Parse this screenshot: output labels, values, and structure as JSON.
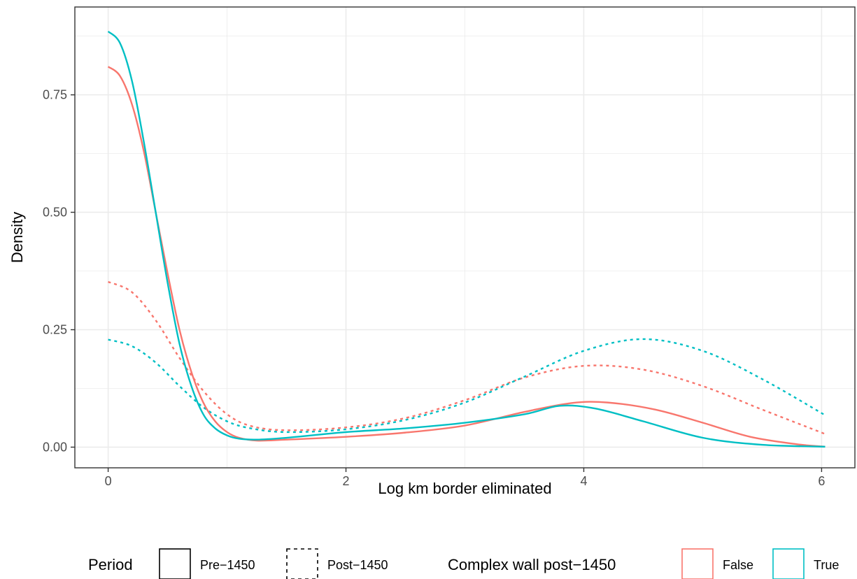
{
  "chart_data": {
    "type": "line",
    "xlabel": "Log km border eliminated",
    "ylabel": "Density",
    "xlim": [
      -0.28,
      6.28
    ],
    "ylim": [
      -0.044,
      0.937
    ],
    "x_ticks": [
      0,
      2,
      4,
      6
    ],
    "x_tick_labels": [
      "0",
      "2",
      "4",
      "6"
    ],
    "y_ticks": [
      0.0,
      0.25,
      0.5,
      0.75
    ],
    "y_tick_labels": [
      "0.00",
      "0.25",
      "0.50",
      "0.75"
    ],
    "grid": true,
    "legend_position": "bottom",
    "legend": {
      "linetype_title": "Period",
      "linetype_entries": [
        {
          "label": "Pre−1450",
          "linetype": "solid"
        },
        {
          "label": "Post−1450",
          "linetype": "dashed"
        }
      ],
      "color_title": "Complex wall post−1450",
      "color_entries": [
        {
          "label": "False",
          "color": "#F8766D"
        },
        {
          "label": "True",
          "color": "#00BFC4"
        }
      ]
    },
    "series": [
      {
        "color_group": "False",
        "period": "Pre−1450",
        "color": "#F8766D",
        "linetype": "solid",
        "x": [
          0,
          0.1,
          0.2,
          0.3,
          0.4,
          0.5,
          0.6,
          0.7,
          0.8,
          0.9,
          1.0,
          1.1,
          1.25,
          1.5,
          2.0,
          2.5,
          3.0,
          3.5,
          3.9,
          4.2,
          4.6,
          5.0,
          5.4,
          5.8,
          6.03
        ],
        "y": [
          0.81,
          0.79,
          0.73,
          0.63,
          0.5,
          0.37,
          0.25,
          0.16,
          0.095,
          0.055,
          0.032,
          0.02,
          0.014,
          0.016,
          0.022,
          0.031,
          0.046,
          0.075,
          0.094,
          0.095,
          0.08,
          0.052,
          0.022,
          0.006,
          0.001
        ]
      },
      {
        "color_group": "True",
        "period": "Pre−1450",
        "color": "#00BFC4",
        "linetype": "solid",
        "x": [
          0,
          0.1,
          0.2,
          0.3,
          0.4,
          0.5,
          0.6,
          0.7,
          0.8,
          0.9,
          1.0,
          1.1,
          1.25,
          1.5,
          2.0,
          2.5,
          3.0,
          3.5,
          3.8,
          4.1,
          4.5,
          5.0,
          5.5,
          6.03
        ],
        "y": [
          0.885,
          0.86,
          0.78,
          0.65,
          0.5,
          0.35,
          0.22,
          0.13,
          0.07,
          0.04,
          0.025,
          0.018,
          0.016,
          0.02,
          0.032,
          0.04,
          0.052,
          0.07,
          0.088,
          0.082,
          0.055,
          0.02,
          0.005,
          0.001
        ]
      },
      {
        "color_group": "False",
        "period": "Post−1450",
        "color": "#F8766D",
        "linetype": "dashed",
        "x": [
          0,
          0.2,
          0.4,
          0.6,
          0.8,
          1.0,
          1.2,
          1.5,
          2.0,
          2.5,
          3.0,
          3.5,
          4.0,
          4.5,
          5.0,
          5.5,
          6.03
        ],
        "y": [
          0.352,
          0.33,
          0.27,
          0.19,
          0.12,
          0.07,
          0.045,
          0.036,
          0.042,
          0.062,
          0.1,
          0.148,
          0.173,
          0.165,
          0.13,
          0.08,
          0.028
        ]
      },
      {
        "color_group": "True",
        "period": "Post−1450",
        "color": "#00BFC4",
        "linetype": "dashed",
        "x": [
          0,
          0.2,
          0.4,
          0.6,
          0.8,
          1.0,
          1.2,
          1.5,
          2.0,
          2.5,
          3.0,
          3.5,
          4.0,
          4.5,
          5.0,
          5.5,
          6.03
        ],
        "y": [
          0.229,
          0.215,
          0.18,
          0.13,
          0.085,
          0.055,
          0.04,
          0.032,
          0.038,
          0.058,
          0.095,
          0.15,
          0.205,
          0.23,
          0.205,
          0.145,
          0.068
        ]
      }
    ]
  }
}
